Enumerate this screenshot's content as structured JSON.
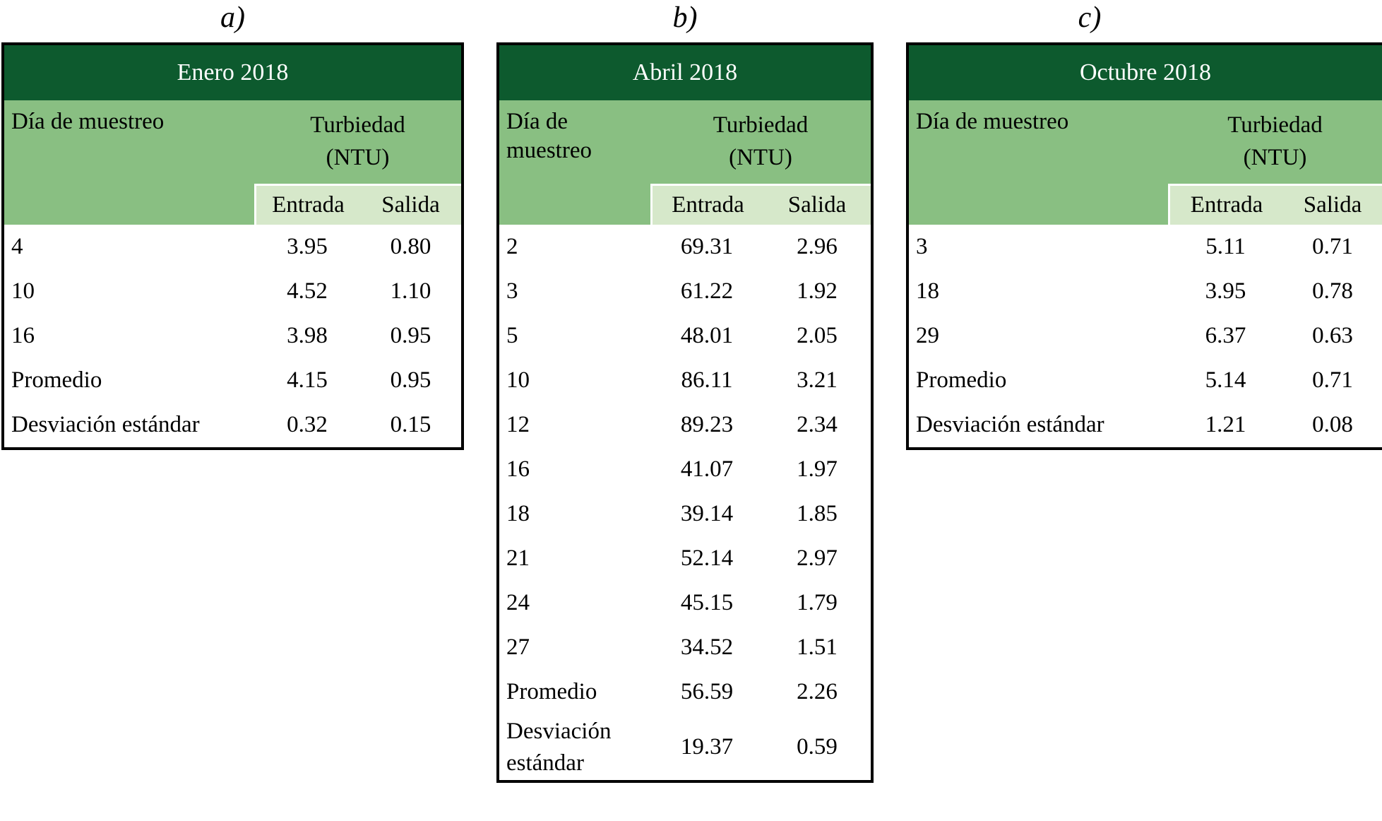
{
  "colors": {
    "title_bg": "#0d5a2e",
    "header_bg": "#89bf82",
    "subheader_bg": "#d6e8ca",
    "title_text": "#ffffff",
    "border": "#000000"
  },
  "tables": [
    {
      "label": "a)",
      "title": "Enero 2018",
      "day_header": "Día de muestreo",
      "group_line1": "Turbiedad",
      "group_line2": "(NTU)",
      "entrada_label": "Entrada",
      "salida_label": "Salida",
      "rows": [
        {
          "day": "4",
          "entrada": "3.95",
          "salida": "0.80"
        },
        {
          "day": "10",
          "entrada": "4.52",
          "salida": "1.10"
        },
        {
          "day": "16",
          "entrada": "3.98",
          "salida": "0.95"
        },
        {
          "day": "Promedio",
          "entrada": "4.15",
          "salida": "0.95"
        },
        {
          "day": "Desviación estándar",
          "entrada": "0.32",
          "salida": "0.15"
        }
      ]
    },
    {
      "label": "b)",
      "title": "Abril 2018",
      "day_header": "Día de muestreo",
      "group_line1": "Turbiedad",
      "group_line2": "(NTU)",
      "entrada_label": "Entrada",
      "salida_label": "Salida",
      "rows": [
        {
          "day": "2",
          "entrada": "69.31",
          "salida": "2.96"
        },
        {
          "day": "3",
          "entrada": "61.22",
          "salida": "1.92"
        },
        {
          "day": "5",
          "entrada": "48.01",
          "salida": "2.05"
        },
        {
          "day": "10",
          "entrada": "86.11",
          "salida": "3.21"
        },
        {
          "day": "12",
          "entrada": "89.23",
          "salida": "2.34"
        },
        {
          "day": "16",
          "entrada": "41.07",
          "salida": "1.97"
        },
        {
          "day": "18",
          "entrada": "39.14",
          "salida": "1.85"
        },
        {
          "day": "21",
          "entrada": "52.14",
          "salida": "2.97"
        },
        {
          "day": "24",
          "entrada": "45.15",
          "salida": "1.79"
        },
        {
          "day": "27",
          "entrada": "34.52",
          "salida": "1.51"
        },
        {
          "day": "Promedio",
          "entrada": "56.59",
          "salida": "2.26"
        },
        {
          "day": "Desviación estándar",
          "entrada": "19.37",
          "salida": "0.59"
        }
      ]
    },
    {
      "label": "c)",
      "title": "Octubre 2018",
      "day_header": "Día de muestreo",
      "group_line1": "Turbiedad",
      "group_line2": "(NTU)",
      "entrada_label": "Entrada",
      "salida_label": "Salida",
      "rows": [
        {
          "day": "3",
          "entrada": "5.11",
          "salida": "0.71"
        },
        {
          "day": "18",
          "entrada": "3.95",
          "salida": "0.78"
        },
        {
          "day": "29",
          "entrada": "6.37",
          "salida": "0.63"
        },
        {
          "day": "Promedio",
          "entrada": "5.14",
          "salida": "0.71"
        },
        {
          "day": "Desviación estándar",
          "entrada": "1.21",
          "salida": "0.08"
        }
      ]
    }
  ]
}
